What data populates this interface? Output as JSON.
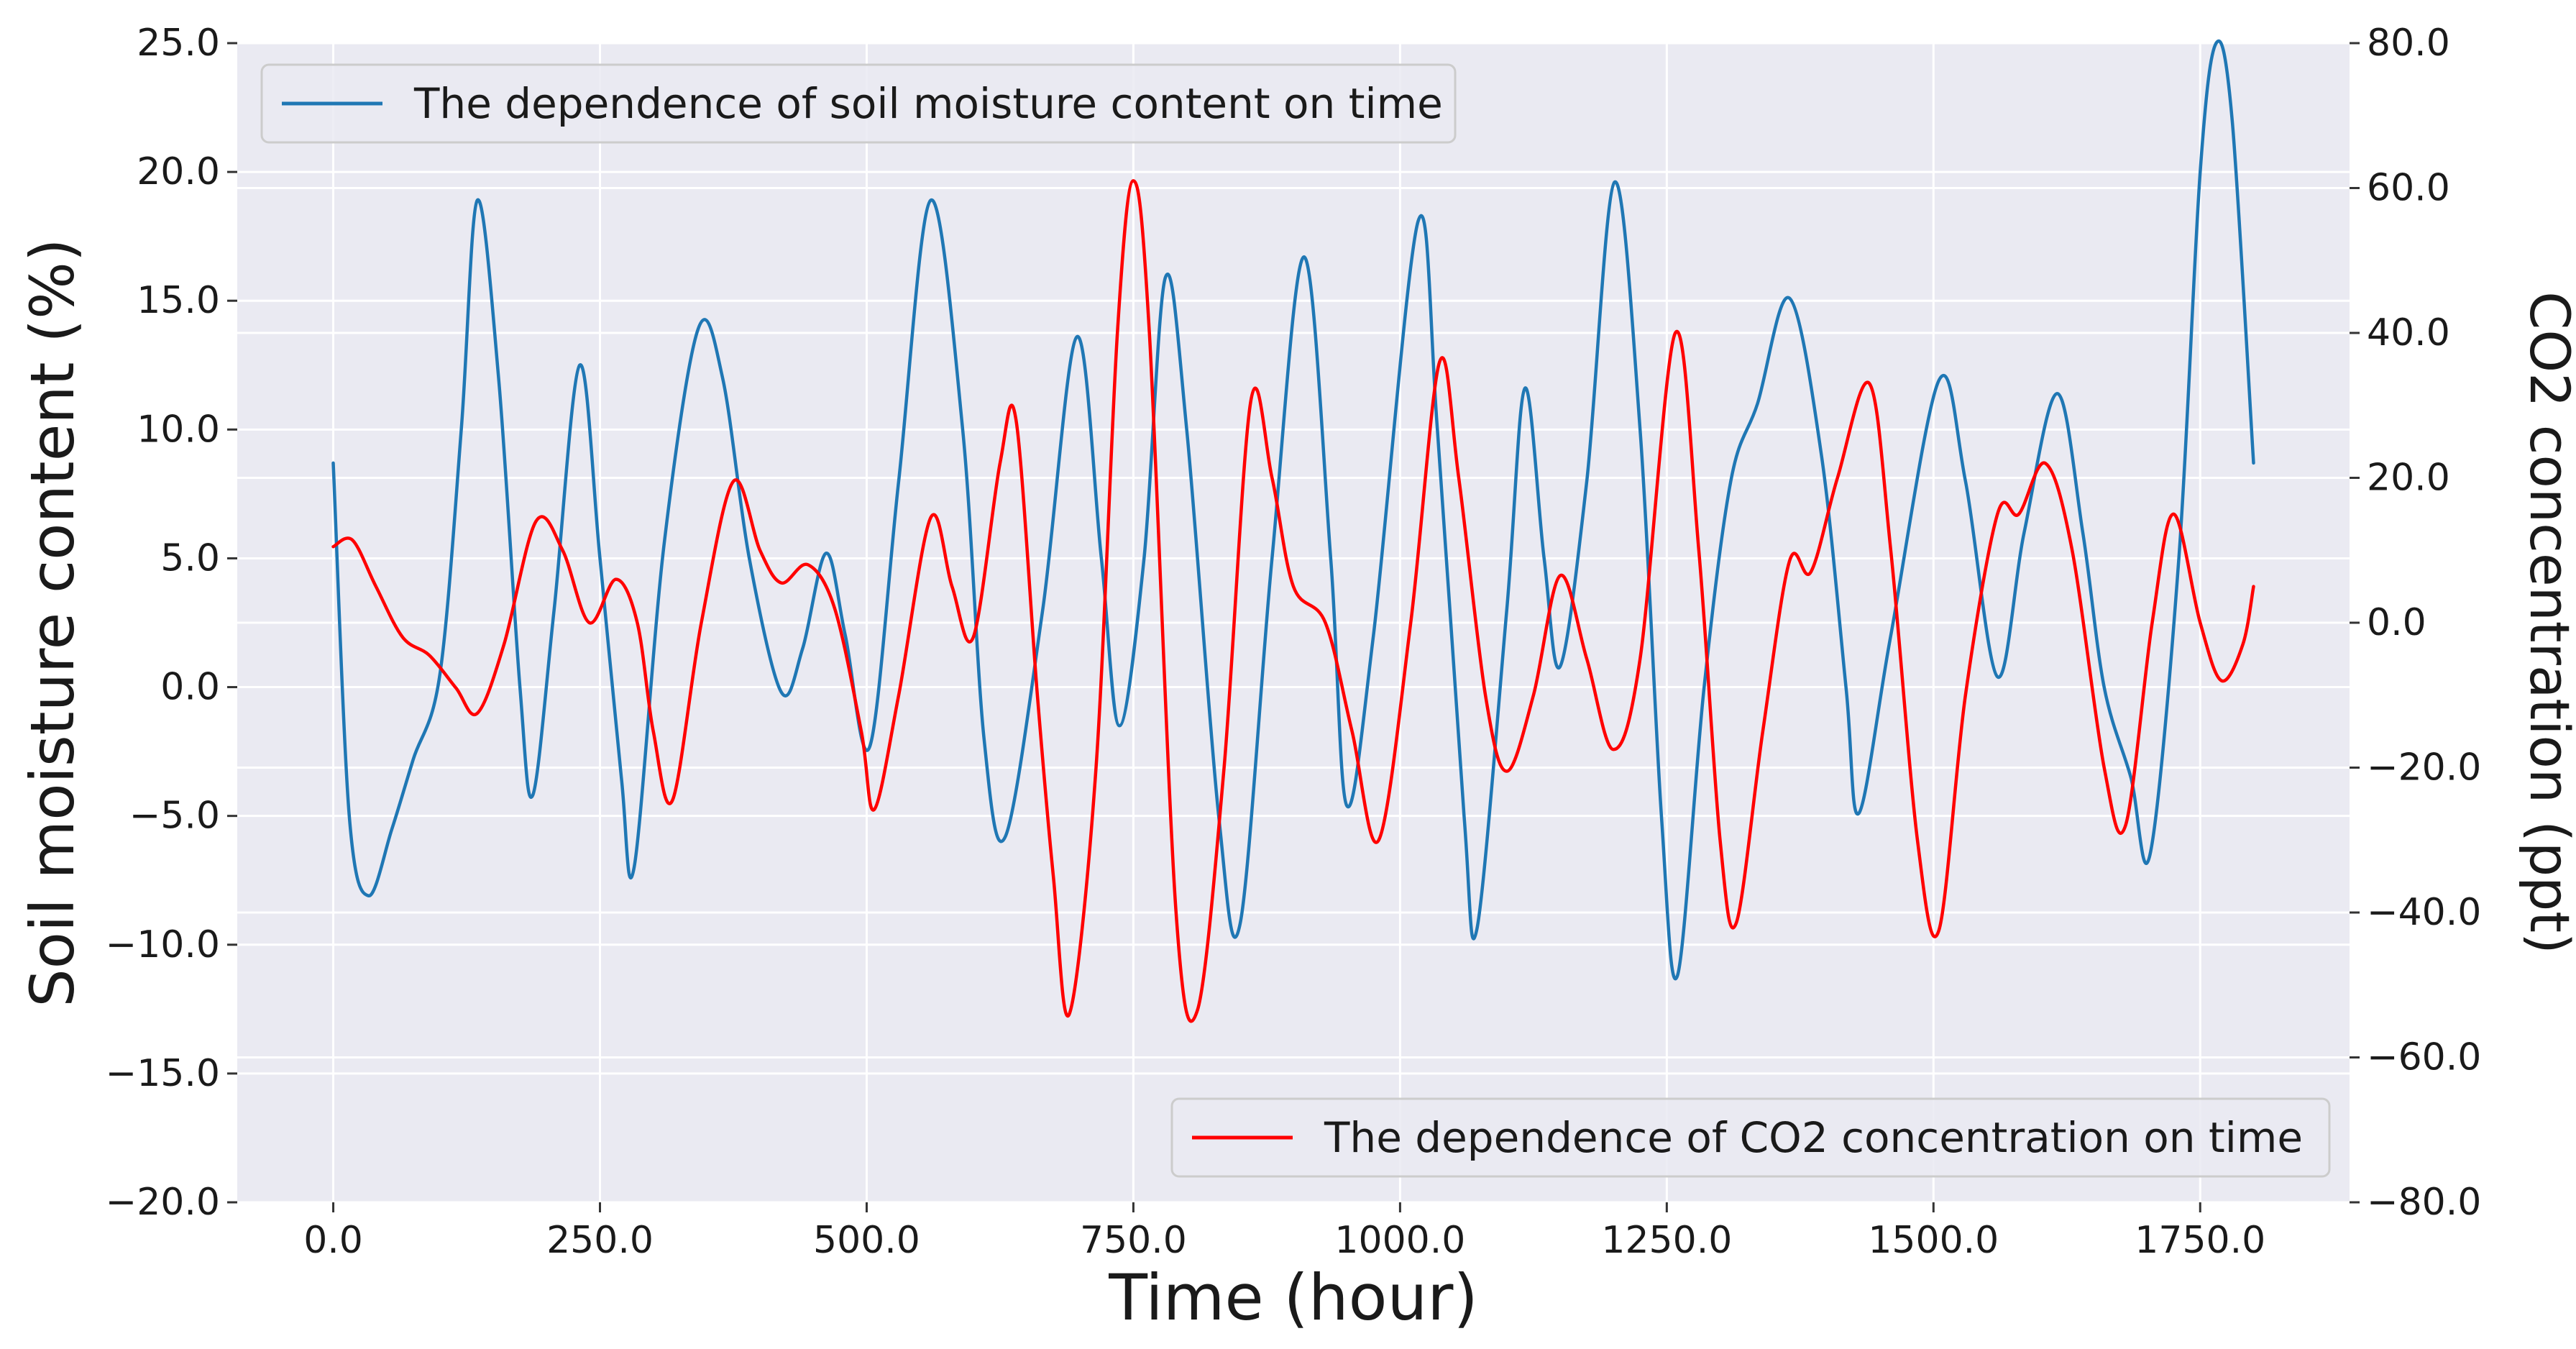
{
  "chart_data": {
    "type": "line",
    "title": "",
    "xlabel": "Time (hour)",
    "ylabel": "Soil moisture content (%)",
    "y2label": "CO2 concentration (ppt)",
    "xlim": [
      -90,
      1890
    ],
    "ylim": [
      -20,
      25
    ],
    "y2lim": [
      -80,
      80
    ],
    "xticks": [
      0,
      250,
      500,
      750,
      1000,
      1250,
      1500,
      1750
    ],
    "xtick_labels": [
      "0.0",
      "250.0",
      "500.0",
      "750.0",
      "1000.0",
      "1250.0",
      "1500.0",
      "1750.0"
    ],
    "yticks": [
      -20,
      -15,
      -10,
      -5,
      0,
      5,
      10,
      15,
      20,
      25
    ],
    "ytick_labels": [
      "−20.0",
      "−15.0",
      "−10.0",
      "−5.0",
      "0.0",
      "5.0",
      "10.0",
      "15.0",
      "20.0",
      "25.0"
    ],
    "y2ticks": [
      -80,
      -60,
      -40,
      -20,
      0,
      20,
      40,
      60,
      80
    ],
    "y2tick_labels": [
      "−80.0",
      "−60.0",
      "−40.0",
      "−20.0",
      "0.0",
      "20.0",
      "40.0",
      "60.0",
      "80.0"
    ],
    "grid": true,
    "series": [
      {
        "name": "The dependence of soil moisture content on time",
        "axis": "left",
        "color": "#1f77b4",
        "legend_position": "top-left",
        "points": [
          [
            0,
            8.7
          ],
          [
            15,
            -5.0
          ],
          [
            33,
            -8.1
          ],
          [
            55,
            -5.5
          ],
          [
            75,
            -2.8
          ],
          [
            100,
            0.5
          ],
          [
            120,
            10.0
          ],
          [
            135,
            18.9
          ],
          [
            155,
            12.0
          ],
          [
            175,
            0.0
          ],
          [
            187,
            -4.2
          ],
          [
            207,
            3.0
          ],
          [
            231,
            12.5
          ],
          [
            250,
            5.0
          ],
          [
            270,
            -3.5
          ],
          [
            282,
            -7.0
          ],
          [
            310,
            5.5
          ],
          [
            342,
            13.9
          ],
          [
            365,
            12.0
          ],
          [
            390,
            5.0
          ],
          [
            420,
            -0.2
          ],
          [
            440,
            1.5
          ],
          [
            462,
            5.2
          ],
          [
            480,
            2.0
          ],
          [
            503,
            -2.3
          ],
          [
            530,
            8.0
          ],
          [
            560,
            18.9
          ],
          [
            590,
            10.0
          ],
          [
            610,
            -2.0
          ],
          [
            630,
            -5.8
          ],
          [
            665,
            3.0
          ],
          [
            697,
            13.6
          ],
          [
            720,
            5.0
          ],
          [
            737,
            -1.5
          ],
          [
            760,
            5.0
          ],
          [
            780,
            15.9
          ],
          [
            800,
            10.0
          ],
          [
            830,
            -5.0
          ],
          [
            850,
            -9.2
          ],
          [
            880,
            5.0
          ],
          [
            910,
            16.7
          ],
          [
            935,
            5.0
          ],
          [
            950,
            -4.6
          ],
          [
            975,
            2.0
          ],
          [
            1017,
            18.1
          ],
          [
            1035,
            10.0
          ],
          [
            1060,
            -5.0
          ],
          [
            1072,
            -9.4
          ],
          [
            1100,
            3.0
          ],
          [
            1117,
            11.6
          ],
          [
            1135,
            5.0
          ],
          [
            1150,
            0.8
          ],
          [
            1175,
            8.0
          ],
          [
            1201,
            19.6
          ],
          [
            1225,
            10.0
          ],
          [
            1245,
            -5.0
          ],
          [
            1260,
            -11.2
          ],
          [
            1285,
            0.0
          ],
          [
            1310,
            8.0
          ],
          [
            1335,
            11.0
          ],
          [
            1365,
            15.1
          ],
          [
            1395,
            9.0
          ],
          [
            1418,
            0.0
          ],
          [
            1430,
            -4.9
          ],
          [
            1460,
            2.0
          ],
          [
            1505,
            11.9
          ],
          [
            1530,
            8.0
          ],
          [
            1560,
            0.4
          ],
          [
            1585,
            6.0
          ],
          [
            1616,
            11.4
          ],
          [
            1640,
            6.0
          ],
          [
            1660,
            0.0
          ],
          [
            1685,
            -3.5
          ],
          [
            1703,
            -6.5
          ],
          [
            1730,
            5.0
          ],
          [
            1750,
            20.0
          ],
          [
            1765,
            25.0
          ],
          [
            1780,
            22.0
          ],
          [
            1800,
            8.7
          ]
        ]
      },
      {
        "name": "The dependence of CO2 concentration on time",
        "axis": "right",
        "color": "#ff0000",
        "legend_position": "bottom-right",
        "points": [
          [
            0,
            10.5
          ],
          [
            18,
            11.4
          ],
          [
            40,
            5.0
          ],
          [
            65,
            -2.0
          ],
          [
            90,
            -4.5
          ],
          [
            115,
            -9.0
          ],
          [
            135,
            -12.5
          ],
          [
            160,
            -3.0
          ],
          [
            190,
            14.0
          ],
          [
            215,
            10.0
          ],
          [
            240,
            0.0
          ],
          [
            265,
            6.0
          ],
          [
            285,
            0.0
          ],
          [
            300,
            -15.0
          ],
          [
            318,
            -24.5
          ],
          [
            345,
            0.0
          ],
          [
            375,
            19.5
          ],
          [
            400,
            10.0
          ],
          [
            420,
            5.5
          ],
          [
            445,
            8.0
          ],
          [
            470,
            2.0
          ],
          [
            495,
            -15.0
          ],
          [
            507,
            -25.8
          ],
          [
            530,
            -10.0
          ],
          [
            560,
            14.5
          ],
          [
            580,
            5.0
          ],
          [
            600,
            -2.0
          ],
          [
            625,
            22.0
          ],
          [
            640,
            28.0
          ],
          [
            660,
            -10.0
          ],
          [
            675,
            -35.0
          ],
          [
            690,
            -54.0
          ],
          [
            715,
            -20.0
          ],
          [
            735,
            40.0
          ],
          [
            750,
            61.0
          ],
          [
            765,
            40.0
          ],
          [
            790,
            -40.0
          ],
          [
            810,
            -53.5
          ],
          [
            835,
            -20.0
          ],
          [
            860,
            30.5
          ],
          [
            880,
            20.0
          ],
          [
            900,
            5.0
          ],
          [
            930,
            0.0
          ],
          [
            955,
            -15.0
          ],
          [
            980,
            -30.0
          ],
          [
            1010,
            0.0
          ],
          [
            1037,
            36.0
          ],
          [
            1055,
            20.0
          ],
          [
            1080,
            -10.0
          ],
          [
            1100,
            -20.5
          ],
          [
            1125,
            -10.0
          ],
          [
            1150,
            6.5
          ],
          [
            1175,
            -5.0
          ],
          [
            1200,
            -17.5
          ],
          [
            1225,
            -5.0
          ],
          [
            1258,
            40.0
          ],
          [
            1280,
            10.0
          ],
          [
            1300,
            -30.0
          ],
          [
            1315,
            -41.5
          ],
          [
            1340,
            -15.0
          ],
          [
            1365,
            8.5
          ],
          [
            1385,
            7.0
          ],
          [
            1410,
            20.0
          ],
          [
            1440,
            33.0
          ],
          [
            1460,
            10.0
          ],
          [
            1485,
            -30.0
          ],
          [
            1505,
            -42.5
          ],
          [
            1530,
            -10.0
          ],
          [
            1560,
            15.0
          ],
          [
            1580,
            15.0
          ],
          [
            1605,
            22.0
          ],
          [
            1630,
            10.0
          ],
          [
            1660,
            -20.0
          ],
          [
            1680,
            -28.0
          ],
          [
            1705,
            0.0
          ],
          [
            1725,
            15.0
          ],
          [
            1750,
            0.0
          ],
          [
            1770,
            -8.0
          ],
          [
            1790,
            -3.0
          ],
          [
            1800,
            5.0
          ]
        ]
      }
    ]
  }
}
